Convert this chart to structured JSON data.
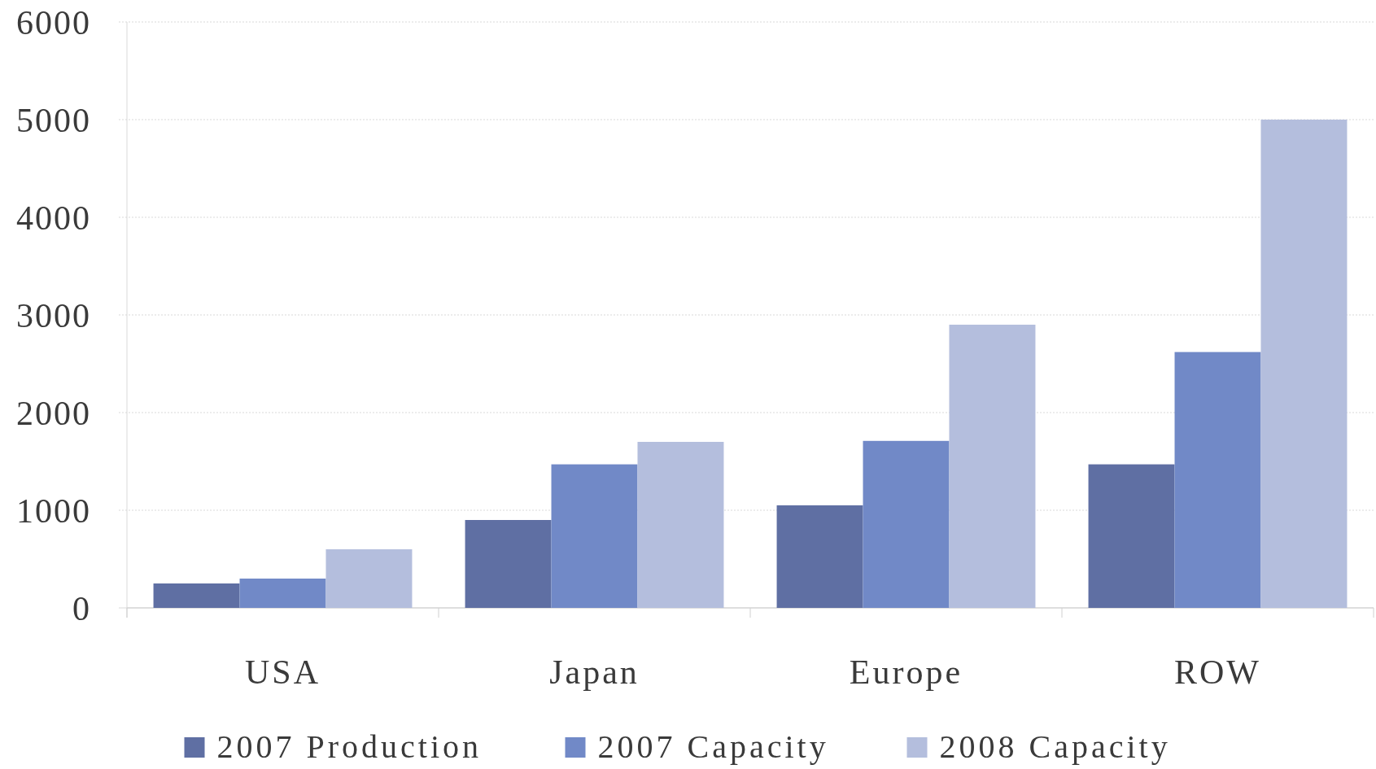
{
  "chart_data": {
    "type": "bar",
    "categories": [
      "USA",
      "Japan",
      "Europe",
      "ROW"
    ],
    "series": [
      {
        "name": "2007 Production",
        "color": "#5f6fa3",
        "values": [
          250,
          900,
          1050,
          1470
        ]
      },
      {
        "name": "2007 Capacity",
        "color": "#7189c7",
        "values": [
          300,
          1470,
          1710,
          2620
        ]
      },
      {
        "name": "2008 Capacity",
        "color": "#b4bedd",
        "values": [
          600,
          1700,
          2900,
          5000
        ]
      }
    ],
    "ylim": [
      0,
      6000
    ],
    "yticks": [
      0,
      1000,
      2000,
      3000,
      4000,
      5000,
      6000
    ],
    "grid": "y",
    "legend": "bottom"
  }
}
